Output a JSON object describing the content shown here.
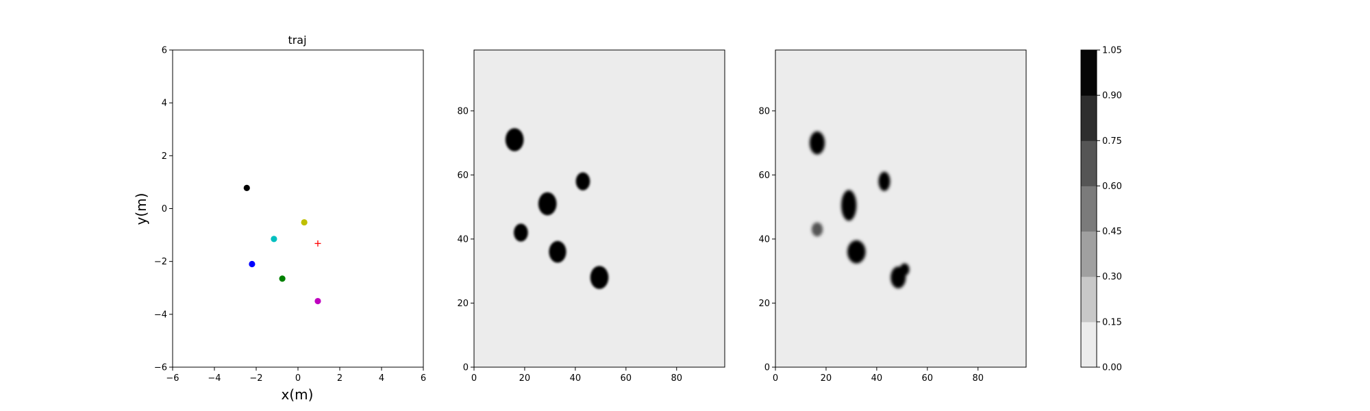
{
  "chart_data": [
    {
      "type": "scatter",
      "title": "traj",
      "xlabel": "x(m)",
      "ylabel": "y(m)",
      "xlim": [
        -6,
        6
      ],
      "ylim": [
        -6,
        6
      ],
      "xticks": [
        "−6",
        "−4",
        "−2",
        "0",
        "2",
        "4",
        "6"
      ],
      "yticks": [
        "−6",
        "−4",
        "−2",
        "0",
        "2",
        "4",
        "6"
      ],
      "grid": false,
      "points": [
        {
          "x": -2.45,
          "y": 0.78,
          "color": "#000000",
          "marker": "circle"
        },
        {
          "x": 0.3,
          "y": -0.52,
          "color": "#bfbf00",
          "marker": "circle"
        },
        {
          "x": -1.15,
          "y": -1.15,
          "color": "#00bfbf",
          "marker": "circle"
        },
        {
          "x": 0.95,
          "y": -1.32,
          "color": "#ff0000",
          "marker": "plus"
        },
        {
          "x": -2.2,
          "y": -2.1,
          "color": "#0000ff",
          "marker": "circle"
        },
        {
          "x": -0.75,
          "y": -2.65,
          "color": "#008000",
          "marker": "circle"
        },
        {
          "x": 0.95,
          "y": -3.5,
          "color": "#bf00bf",
          "marker": "circle"
        }
      ]
    },
    {
      "type": "heatmap",
      "title": "",
      "xlabel": "",
      "ylabel": "",
      "xlim": [
        0,
        99
      ],
      "ylim": [
        0,
        99
      ],
      "xticks": [
        "0",
        "20",
        "40",
        "60",
        "80"
      ],
      "yticks": [
        "0",
        "20",
        "40",
        "60",
        "80"
      ],
      "background_value": 0.0,
      "blobs": [
        {
          "cx": 16,
          "cy": 71,
          "rx": 3.6,
          "ry": 3.6,
          "value": 1.0
        },
        {
          "cx": 43,
          "cy": 58,
          "rx": 2.8,
          "ry": 2.8,
          "value": 1.0
        },
        {
          "cx": 29,
          "cy": 51,
          "rx": 3.6,
          "ry": 3.6,
          "value": 1.0
        },
        {
          "cx": 18.5,
          "cy": 42,
          "rx": 2.8,
          "ry": 2.8,
          "value": 1.0
        },
        {
          "cx": 33,
          "cy": 36,
          "rx": 3.4,
          "ry": 3.4,
          "value": 1.0
        },
        {
          "cx": 49.5,
          "cy": 28,
          "rx": 3.6,
          "ry": 3.6,
          "value": 1.0
        }
      ]
    },
    {
      "type": "heatmap",
      "title": "",
      "xlabel": "",
      "ylabel": "",
      "xlim": [
        0,
        99
      ],
      "ylim": [
        0,
        99
      ],
      "xticks": [
        "0",
        "20",
        "40",
        "60",
        "80"
      ],
      "yticks": [
        "0",
        "20",
        "40",
        "60",
        "80"
      ],
      "background_value": 0.0,
      "blobs": [
        {
          "cx": 16.5,
          "cy": 70,
          "rx": 3.0,
          "ry": 3.6,
          "value": 1.0
        },
        {
          "cx": 43,
          "cy": 58,
          "rx": 2.3,
          "ry": 3.0,
          "value": 1.0
        },
        {
          "cx": 29,
          "cy": 50.5,
          "rx": 3.0,
          "ry": 4.8,
          "value": 1.0
        },
        {
          "cx": 16.5,
          "cy": 43,
          "rx": 2.2,
          "ry": 2.2,
          "value": 0.65
        },
        {
          "cx": 32,
          "cy": 36,
          "rx": 3.6,
          "ry": 3.6,
          "value": 1.0
        },
        {
          "cx": 48.5,
          "cy": 28,
          "rx": 3.0,
          "ry": 3.4,
          "value": 1.0
        },
        {
          "cx": 51,
          "cy": 30.5,
          "rx": 1.9,
          "ry": 1.9,
          "value": 1.0
        }
      ]
    }
  ],
  "colorbar": {
    "levels": [
      "0.00",
      "0.15",
      "0.30",
      "0.45",
      "0.60",
      "0.75",
      "0.90",
      "1.05"
    ],
    "colors": [
      "#ececec",
      "#c8c8c8",
      "#a0a0a0",
      "#7b7b7b",
      "#555555",
      "#2e2e2e",
      "#060606"
    ]
  }
}
